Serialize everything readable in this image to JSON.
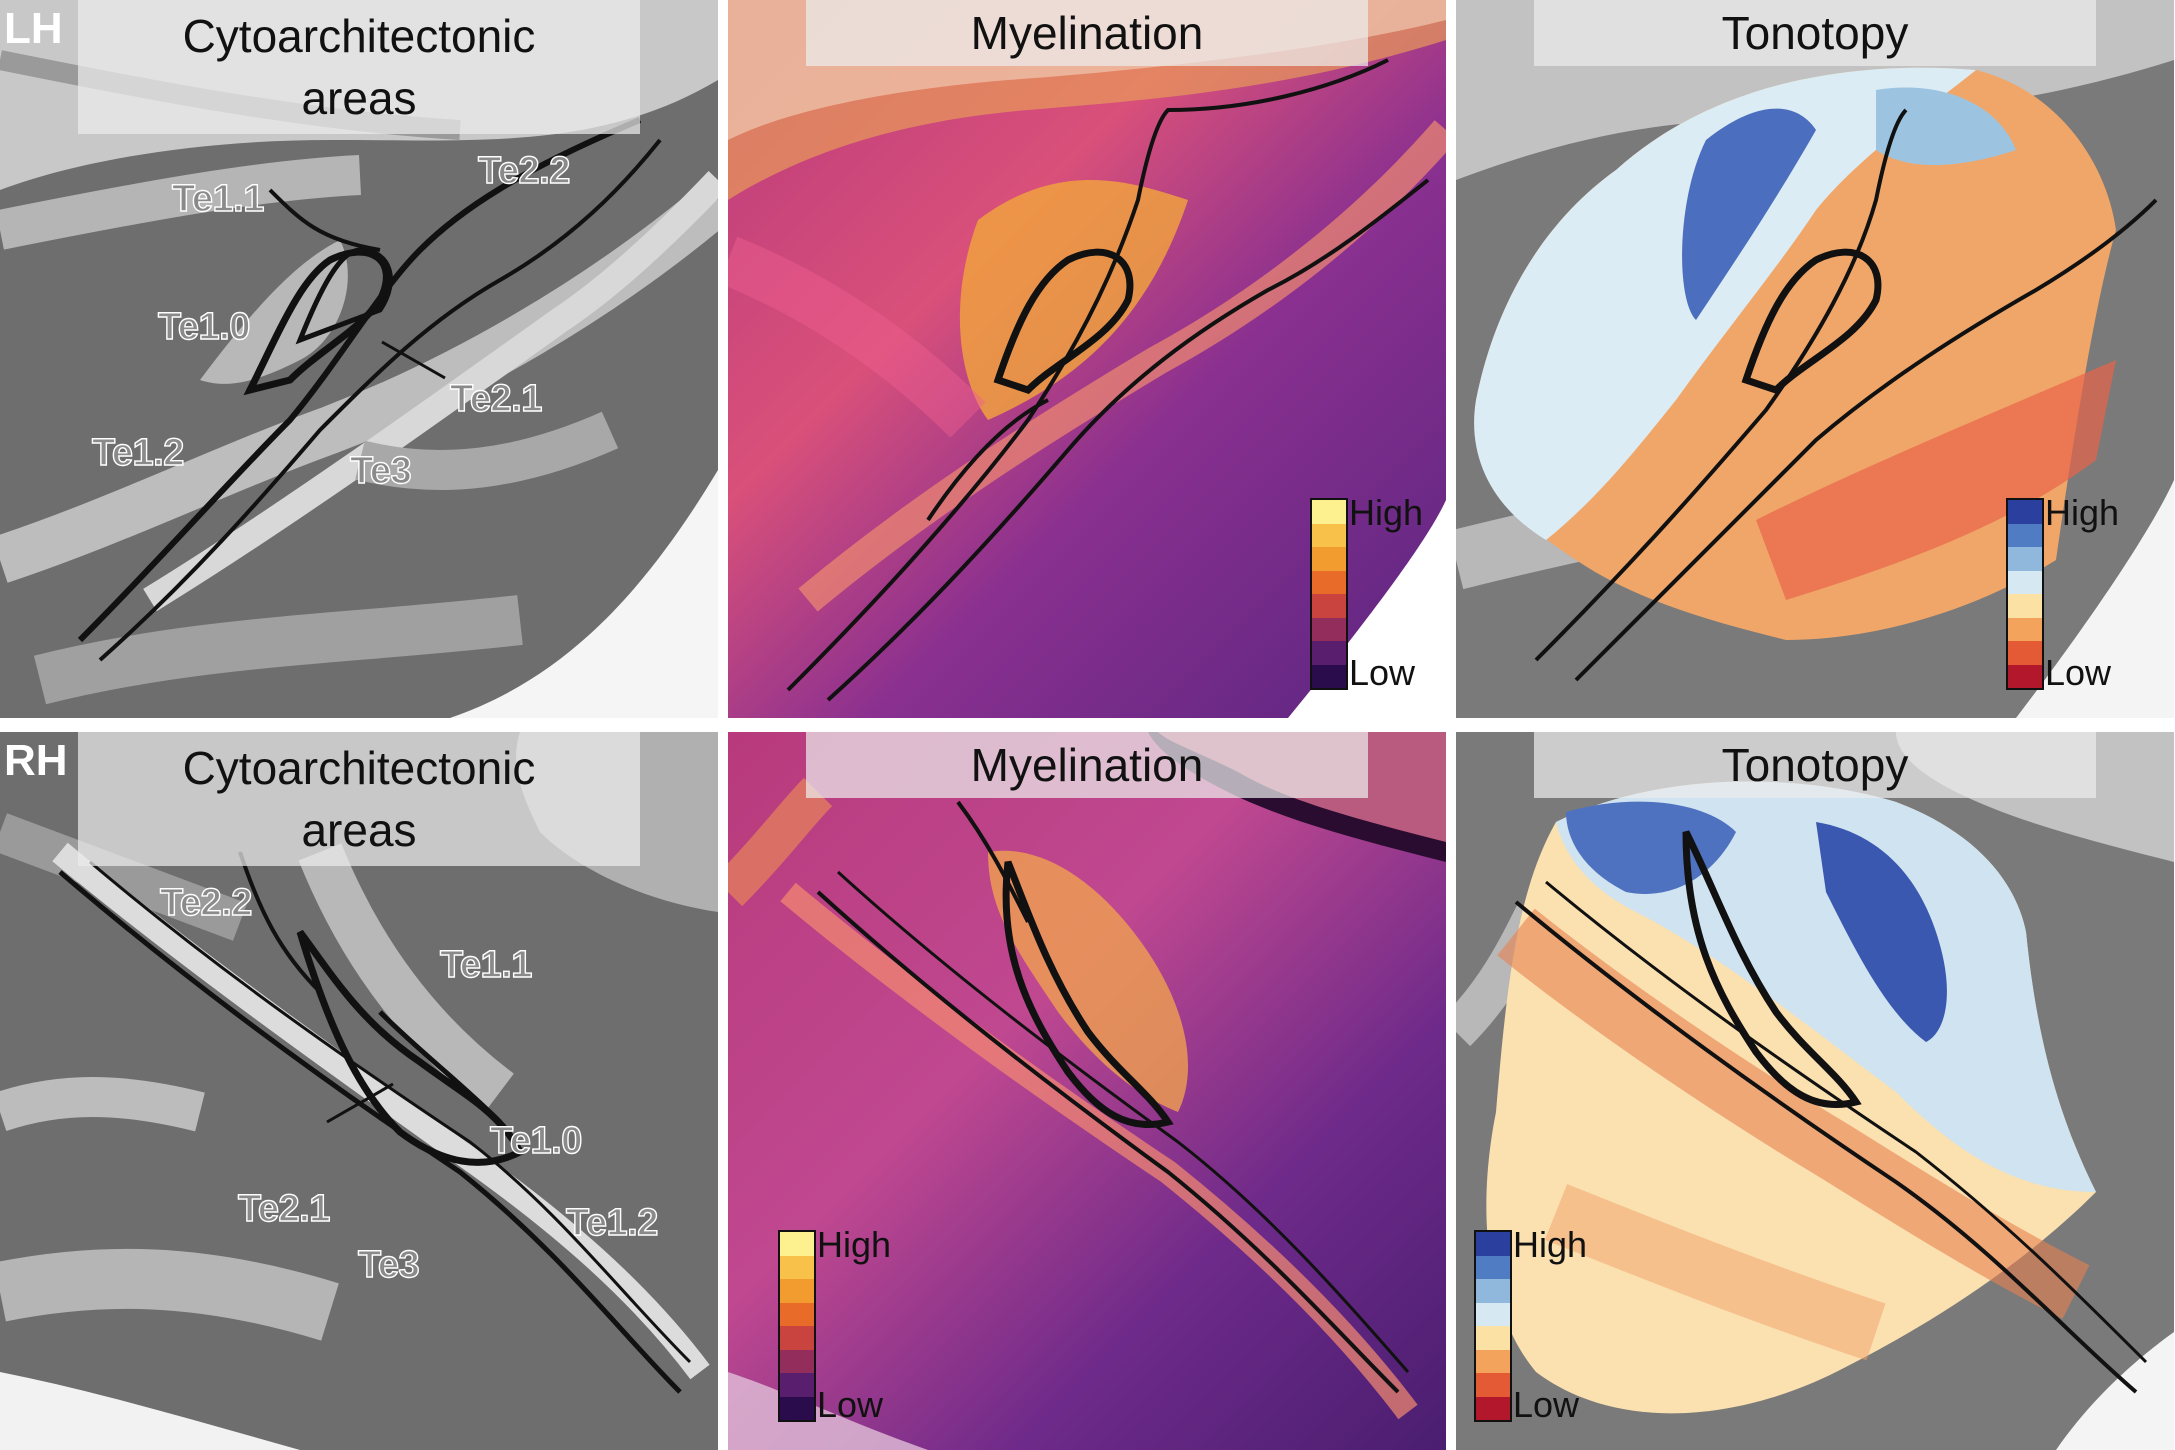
{
  "rows": [
    {
      "hemisphere": "LH",
      "panels": {
        "cyto": {
          "title_line1": "Cytoarchitectonic",
          "title_line2": "areas",
          "labels": [
            "Te1.1",
            "Te2.2",
            "Te1.0",
            "Te2.1",
            "Te1.2",
            "Te3"
          ]
        },
        "myelin": {
          "title": "Myelination",
          "legend_high": "High",
          "legend_low": "Low"
        },
        "tono": {
          "title": "Tonotopy",
          "legend_high": "High",
          "legend_low": "Low"
        }
      }
    },
    {
      "hemisphere": "RH",
      "panels": {
        "cyto": {
          "title_line1": "Cytoarchitectonic",
          "title_line2": "areas",
          "labels": [
            "Te2.2",
            "Te1.1",
            "Te1.0",
            "Te2.1",
            "Te1.2",
            "Te3"
          ]
        },
        "myelin": {
          "title": "Myelination",
          "legend_high": "High",
          "legend_low": "Low"
        },
        "tono": {
          "title": "Tonotopy",
          "legend_high": "High",
          "legend_low": "Low"
        }
      }
    }
  ],
  "colors": {
    "myelin_scale": [
      "#fcf18e",
      "#f7c14a",
      "#f29b2e",
      "#e96b2a",
      "#c9433f",
      "#932e5c",
      "#5a1e6e",
      "#2a0c4c"
    ],
    "tono_scale": [
      "#2b3f9e",
      "#4f7cc2",
      "#8fb8dc",
      "#d6e8f1",
      "#fbe1a3",
      "#f3a35c",
      "#e35a34",
      "#b3172b"
    ]
  }
}
